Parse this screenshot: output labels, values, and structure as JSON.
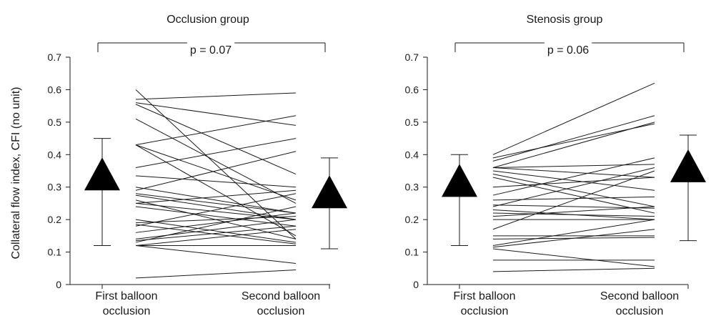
{
  "chart_data": [
    {
      "type": "line",
      "title": "Occlusion group",
      "ylabel": "Collateral flow index, CFI (no unit)",
      "categories": [
        "First balloon occlusion",
        "Second balloon occlusion"
      ],
      "category_lines": [
        [
          "First balloon",
          "occlusion"
        ],
        [
          "Second balloon",
          "occlusion"
        ]
      ],
      "ylim": [
        0,
        0.7
      ],
      "yticks": [
        "0",
        "0.1",
        "0.2",
        "0.3",
        "0.4",
        "0.5",
        "0.6",
        "0.7"
      ],
      "comparison": "p = 0.07",
      "summary": {
        "first": {
          "mean": 0.29,
          "low": 0.12,
          "high": 0.45
        },
        "second": {
          "mean": 0.235,
          "low": 0.11,
          "high": 0.39
        }
      },
      "pairs": [
        [
          0.6,
          0.14
        ],
        [
          0.57,
          0.59
        ],
        [
          0.56,
          0.49
        ],
        [
          0.555,
          0.34
        ],
        [
          0.51,
          0.25
        ],
        [
          0.43,
          0.52
        ],
        [
          0.43,
          0.26
        ],
        [
          0.43,
          0.15
        ],
        [
          0.36,
          0.45
        ],
        [
          0.335,
          0.3
        ],
        [
          0.3,
          0.22
        ],
        [
          0.29,
          0.41
        ],
        [
          0.28,
          0.22
        ],
        [
          0.275,
          0.2
        ],
        [
          0.26,
          0.14
        ],
        [
          0.25,
          0.29
        ],
        [
          0.25,
          0.2
        ],
        [
          0.24,
          0.18
        ],
        [
          0.2,
          0.13
        ],
        [
          0.19,
          0.21
        ],
        [
          0.185,
          0.125
        ],
        [
          0.18,
          0.28
        ],
        [
          0.16,
          0.22
        ],
        [
          0.14,
          0.2
        ],
        [
          0.135,
          0.18
        ],
        [
          0.13,
          0.24
        ],
        [
          0.12,
          0.17
        ],
        [
          0.12,
          0.065
        ],
        [
          0.12,
          0.12
        ],
        [
          0.02,
          0.045
        ]
      ]
    },
    {
      "type": "line",
      "title": "Stenosis group",
      "ylabel": "",
      "categories": [
        "First balloon occlusion",
        "Second balloon occlusion"
      ],
      "category_lines": [
        [
          "First balloon",
          "occlusion"
        ],
        [
          "Second balloon",
          "occlusion"
        ]
      ],
      "ylim": [
        0,
        0.7
      ],
      "yticks": [
        "0",
        "0.1",
        "0.2",
        "0.3",
        "0.4",
        "0.5",
        "0.6",
        "0.7"
      ],
      "comparison": "p = 0.06",
      "summary": {
        "first": {
          "mean": 0.27,
          "low": 0.12,
          "high": 0.4
        },
        "second": {
          "mean": 0.315,
          "low": 0.135,
          "high": 0.46
        }
      },
      "pairs": [
        [
          0.4,
          0.62
        ],
        [
          0.39,
          0.495
        ],
        [
          0.38,
          0.52
        ],
        [
          0.36,
          0.5
        ],
        [
          0.36,
          0.37
        ],
        [
          0.36,
          0.33
        ],
        [
          0.35,
          0.29
        ],
        [
          0.34,
          0.24
        ],
        [
          0.33,
          0.22
        ],
        [
          0.3,
          0.33
        ],
        [
          0.275,
          0.39
        ],
        [
          0.26,
          0.27
        ],
        [
          0.245,
          0.235
        ],
        [
          0.24,
          0.36
        ],
        [
          0.23,
          0.2
        ],
        [
          0.22,
          0.21
        ],
        [
          0.21,
          0.24
        ],
        [
          0.2,
          0.2
        ],
        [
          0.17,
          0.35
        ],
        [
          0.15,
          0.15
        ],
        [
          0.14,
          0.145
        ],
        [
          0.12,
          0.2
        ],
        [
          0.115,
          0.17
        ],
        [
          0.11,
          0.055
        ],
        [
          0.075,
          0.075
        ],
        [
          0.04,
          0.05
        ]
      ]
    }
  ]
}
